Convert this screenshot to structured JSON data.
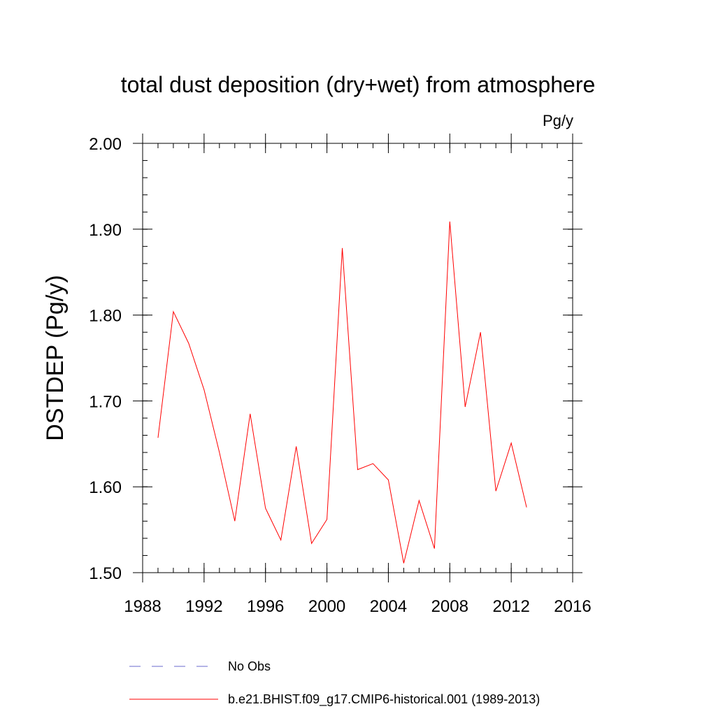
{
  "chart_data": {
    "type": "line",
    "title": "total dust deposition (dry+wet) from atmosphere",
    "units": "Pg/y",
    "ylabel": "DSTDEP  (Pg/y)",
    "xlabel": "",
    "xlim": [
      1988,
      2016
    ],
    "ylim": [
      1.5,
      2.0
    ],
    "x_major_ticks": [
      1988,
      1992,
      1996,
      2000,
      2004,
      2008,
      2012,
      2016
    ],
    "x_tick_labels": [
      "1988",
      "1992",
      "1996",
      "2000",
      "2004",
      "2008",
      "2012",
      "2016"
    ],
    "x_minor_step": 1,
    "y_major_ticks": [
      1.5,
      1.6,
      1.7,
      1.8,
      1.9,
      2.0
    ],
    "y_tick_labels": [
      "1.50",
      "1.60",
      "1.70",
      "1.80",
      "1.90",
      "2.00"
    ],
    "y_minor_step": 0.02,
    "grid": false,
    "legend_position": "bottom",
    "series": [
      {
        "name": "b.e21.BHIST.f09_g17.CMIP6-historical.001 (1989-2013)",
        "color": "#ff0000",
        "style": "solid",
        "x": [
          1989,
          1990,
          1991,
          1992,
          1993,
          1994,
          1995,
          1996,
          1997,
          1998,
          1999,
          2000,
          2001,
          2002,
          2003,
          2004,
          2005,
          2006,
          2007,
          2008,
          2009,
          2010,
          2011,
          2012,
          2013
        ],
        "y": [
          1.657,
          1.804,
          1.767,
          1.713,
          1.64,
          1.56,
          1.685,
          1.575,
          1.538,
          1.647,
          1.534,
          1.562,
          1.878,
          1.62,
          1.627,
          1.608,
          1.511,
          1.584,
          1.528,
          1.909,
          1.693,
          1.78,
          1.595,
          1.651,
          1.576
        ]
      }
    ],
    "legend": [
      {
        "label": "No Obs",
        "color": "#6a6acd",
        "style": "dashed"
      },
      {
        "label": "b.e21.BHIST.f09_g17.CMIP6-historical.001 (1989-2013)",
        "color": "#ff0000",
        "style": "solid"
      }
    ]
  }
}
